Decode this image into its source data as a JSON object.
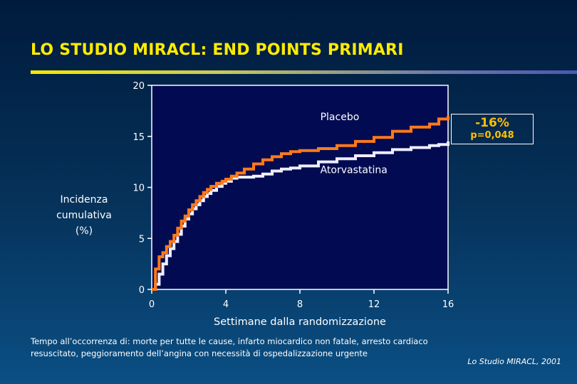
{
  "slide": {
    "title": "LO STUDIO MIRACL: END POINTS PRIMARI",
    "ylabel_lines": [
      "Incidenza",
      "cumulativa",
      "(%)"
    ],
    "result_box": {
      "percent": "-16%",
      "p_value": "p=0,048"
    },
    "footnote_lines": [
      "Tempo all’occorrenza di: morte per tutte le cause, infarto miocardico non fatale, arresto cardiaco",
      "resuscitato, peggioramento dell’angina con necessità di ospedalizzazione urgente"
    ],
    "source": "Lo Studio MIRACL, 2001"
  },
  "colors": {
    "plot_background": "#020b52",
    "placebo": "#ff7a1a",
    "atorvastatina": "#eeeeff",
    "title": "#ffec00",
    "result_text": "#ffc000"
  },
  "chart_data": {
    "type": "line",
    "xlabel": "Settimane dalla randomizzazione",
    "ylabel": "Incidenza cumulativa (%)",
    "xlim": [
      0,
      16
    ],
    "ylim": [
      0,
      20
    ],
    "xticks": [
      0,
      4,
      8,
      12,
      16
    ],
    "yticks": [
      0,
      5,
      10,
      15,
      20
    ],
    "grid": false,
    "series": [
      {
        "name": "Placebo",
        "x": [
          0,
          0.2,
          0.4,
          0.6,
          0.8,
          1.0,
          1.2,
          1.4,
          1.6,
          1.8,
          2.0,
          2.2,
          2.4,
          2.6,
          2.8,
          3.0,
          3.2,
          3.5,
          3.8,
          4.0,
          4.3,
          4.6,
          5.0,
          5.5,
          6.0,
          6.5,
          7.0,
          7.5,
          8.0,
          9.0,
          10.0,
          11.0,
          12.0,
          13.0,
          14.0,
          15.0,
          15.5,
          16.0
        ],
        "y": [
          0,
          2.0,
          3.2,
          3.6,
          4.2,
          4.7,
          5.3,
          6.0,
          6.7,
          7.2,
          7.8,
          8.3,
          8.7,
          9.1,
          9.5,
          9.8,
          10.1,
          10.4,
          10.6,
          10.8,
          11.1,
          11.4,
          11.8,
          12.3,
          12.7,
          13.0,
          13.3,
          13.5,
          13.6,
          13.8,
          14.1,
          14.5,
          14.9,
          15.5,
          15.9,
          16.2,
          16.7,
          17.0
        ]
      },
      {
        "name": "Atorvastatina",
        "x": [
          0,
          0.2,
          0.4,
          0.6,
          0.8,
          1.0,
          1.2,
          1.4,
          1.6,
          1.8,
          2.0,
          2.2,
          2.4,
          2.6,
          2.8,
          3.0,
          3.2,
          3.5,
          3.8,
          4.0,
          4.3,
          4.6,
          5.0,
          5.5,
          6.0,
          6.5,
          7.0,
          7.5,
          8.0,
          9.0,
          10.0,
          11.0,
          12.0,
          13.0,
          14.0,
          15.0,
          15.5,
          16.0
        ],
        "y": [
          0,
          0.5,
          1.5,
          2.5,
          3.3,
          4.0,
          4.7,
          5.4,
          6.2,
          6.9,
          7.4,
          7.9,
          8.3,
          8.7,
          9.1,
          9.4,
          9.7,
          10.1,
          10.4,
          10.6,
          10.9,
          11.0,
          11.0,
          11.1,
          11.3,
          11.6,
          11.8,
          11.9,
          12.1,
          12.5,
          12.8,
          13.1,
          13.4,
          13.7,
          13.9,
          14.1,
          14.2,
          14.5
        ]
      }
    ],
    "annotations": [
      {
        "text": "Placebo",
        "x": 9.1,
        "y": 16.6
      },
      {
        "text": "Atorvastatina",
        "x": 9.1,
        "y": 11.4
      }
    ]
  }
}
